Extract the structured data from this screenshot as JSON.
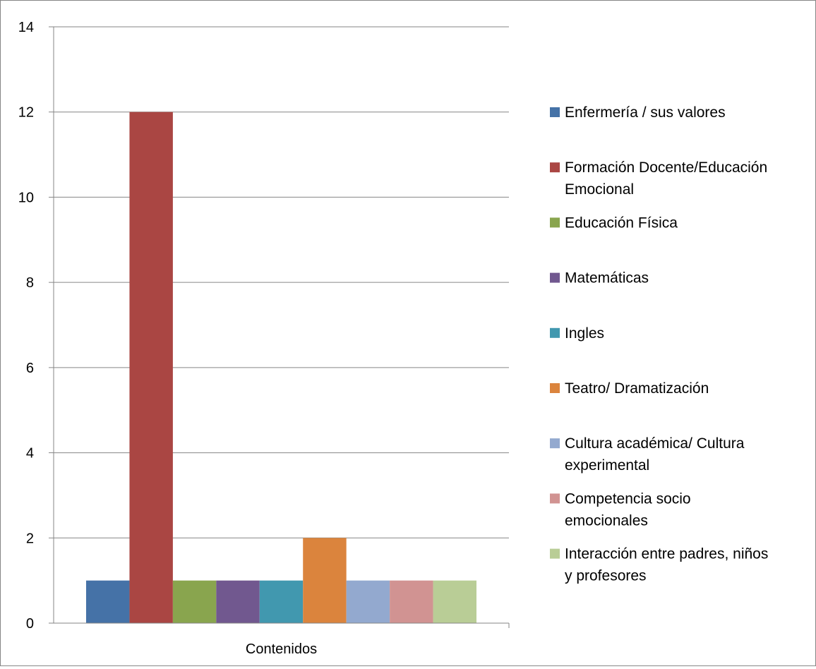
{
  "chart_data": {
    "type": "bar",
    "categories": [
      "Contenidos"
    ],
    "series": [
      {
        "name": "Enfermería / sus valores",
        "values": [
          1
        ],
        "color": "#4572a7",
        "legend_lines": [
          "Enfermería / sus valores"
        ]
      },
      {
        "name": "Formación Docente/Educación Emocional",
        "values": [
          12
        ],
        "color": "#aa4643",
        "legend_lines": [
          "Formación Docente/Educación",
          "Emocional"
        ]
      },
      {
        "name": "Educación Física",
        "values": [
          1
        ],
        "color": "#89a54e",
        "legend_lines": [
          "Educación Física"
        ]
      },
      {
        "name": "Matemáticas",
        "values": [
          1
        ],
        "color": "#71588f",
        "legend_lines": [
          "Matemáticas"
        ]
      },
      {
        "name": "Ingles",
        "values": [
          1
        ],
        "color": "#4198af",
        "legend_lines": [
          "Ingles"
        ]
      },
      {
        "name": "Teatro/ Dramatización",
        "values": [
          2
        ],
        "color": "#db843d",
        "legend_lines": [
          "Teatro/ Dramatización"
        ]
      },
      {
        "name": "Cultura académica/ Cultura experimental",
        "values": [
          1
        ],
        "color": "#93a9cf",
        "legend_lines": [
          "Cultura académica/ Cultura",
          "experimental"
        ]
      },
      {
        "name": "Competencia socio emocionales",
        "values": [
          1
        ],
        "color": "#d19392",
        "legend_lines": [
          "Competencia socio",
          "emocionales"
        ]
      },
      {
        "name": "Interacción entre padres, niños y profesores",
        "values": [
          1
        ],
        "color": "#b9cd96",
        "legend_lines": [
          "Interacción entre padres, niños",
          "y profesores"
        ]
      }
    ],
    "y_ticks": [
      "0",
      "2",
      "4",
      "6",
      "8",
      "10",
      "12",
      "14"
    ],
    "ylim": [
      0,
      14
    ],
    "title": "",
    "xlabel": "",
    "ylabel": "",
    "grid": true,
    "legend_position": "right"
  }
}
